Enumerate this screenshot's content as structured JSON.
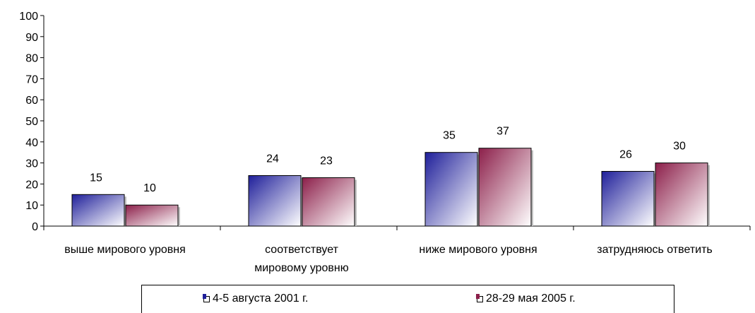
{
  "chart_data": {
    "type": "bar",
    "categories": [
      [
        "выше мирового уровня"
      ],
      [
        "соответствует",
        "мировому уровню"
      ],
      [
        "ниже мирового уровня"
      ],
      [
        "затрудняюсь ответить"
      ]
    ],
    "series": [
      {
        "name": "4-5 августа 2001 г.",
        "values": [
          15,
          24,
          35,
          26
        ],
        "color": "#1f1f9a"
      },
      {
        "name": "28-29 мая 2005 г.",
        "values": [
          10,
          23,
          37,
          30
        ],
        "color": "#8c1f4a"
      }
    ],
    "ylim": [
      0,
      100
    ],
    "yticks": [
      0,
      10,
      20,
      30,
      40,
      50,
      60,
      70,
      80,
      90,
      100
    ],
    "grid": false,
    "legend_position": "bottom"
  }
}
